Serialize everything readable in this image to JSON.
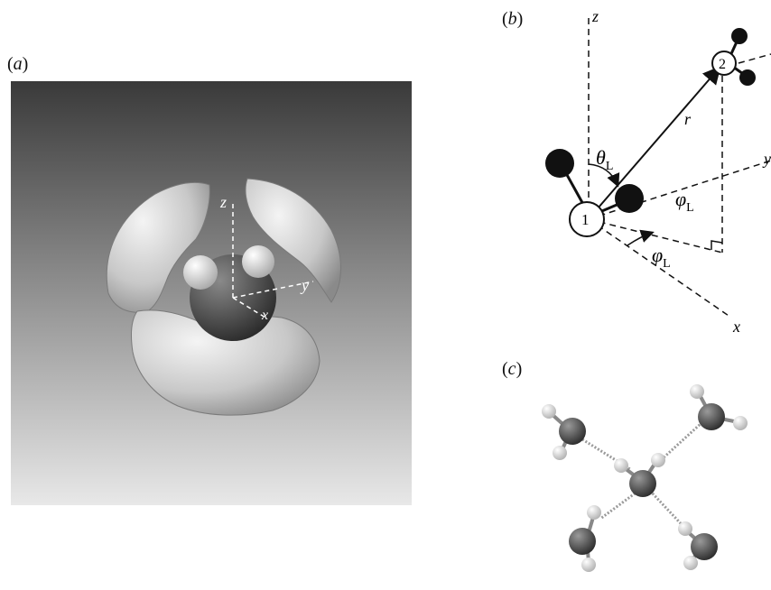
{
  "panel_a": {
    "label": "(a)",
    "axes": {
      "x": "x",
      "y": "y",
      "z": "z"
    },
    "colors": {
      "bg_top": "#3a3a3a",
      "bg_bottom": "#e8e8e8",
      "shell": "#cfcfcf",
      "molecule": "#4a4a4a"
    }
  },
  "panel_b": {
    "label": "(b)",
    "axes": {
      "x": "x",
      "y": "y",
      "z": "z"
    },
    "theta": "θ",
    "phi": "φ",
    "sub": "L",
    "r": "r",
    "mol1": "1",
    "mol2": "2"
  },
  "panel_c": {
    "label": "(c)",
    "colors": {
      "oxygen": "#3c3c3c",
      "hydrogen": "#e6e6e6",
      "bond": "#9a9a9a"
    }
  }
}
